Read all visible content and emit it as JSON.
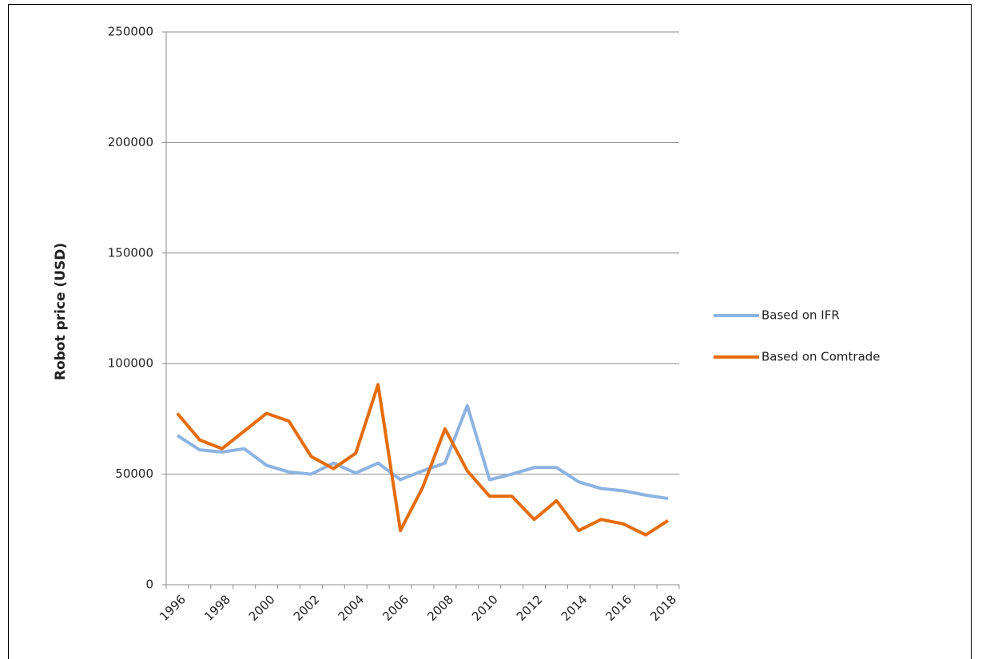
{
  "chart_data": {
    "type": "line",
    "y_label": "Robot price (USD)",
    "categories": [
      "1996",
      null,
      "1998",
      null,
      "2000",
      null,
      "2002",
      null,
      "2004",
      null,
      "2006",
      null,
      "2008",
      null,
      "2010",
      null,
      "2012",
      null,
      "2014",
      null,
      "2016",
      null,
      "2018"
    ],
    "series": [
      {
        "name": "Based on IFR",
        "color": "#8db3e2",
        "values": [
          67500,
          61000,
          60000,
          61500,
          54000,
          51000,
          50000,
          55000,
          50500,
          55000,
          47500,
          51500,
          55000,
          81000,
          47500,
          50000,
          53000,
          53000,
          46500,
          43500,
          42500,
          40500,
          39000
        ]
      },
      {
        "name": "Based on Comtrade",
        "color": "#e46c0a",
        "values": [
          77500,
          65500,
          61500,
          69500,
          77500,
          74000,
          58000,
          52500,
          59500,
          90500,
          24500,
          44000,
          70500,
          51500,
          40000,
          40000,
          29500,
          38000,
          24500,
          29500,
          27500,
          22500,
          29000
        ]
      }
    ],
    "ylim": [
      0,
      250000
    ],
    "yticks": [
      0,
      50000,
      100000,
      150000,
      200000,
      250000
    ],
    "grid": true,
    "legend": "right"
  }
}
